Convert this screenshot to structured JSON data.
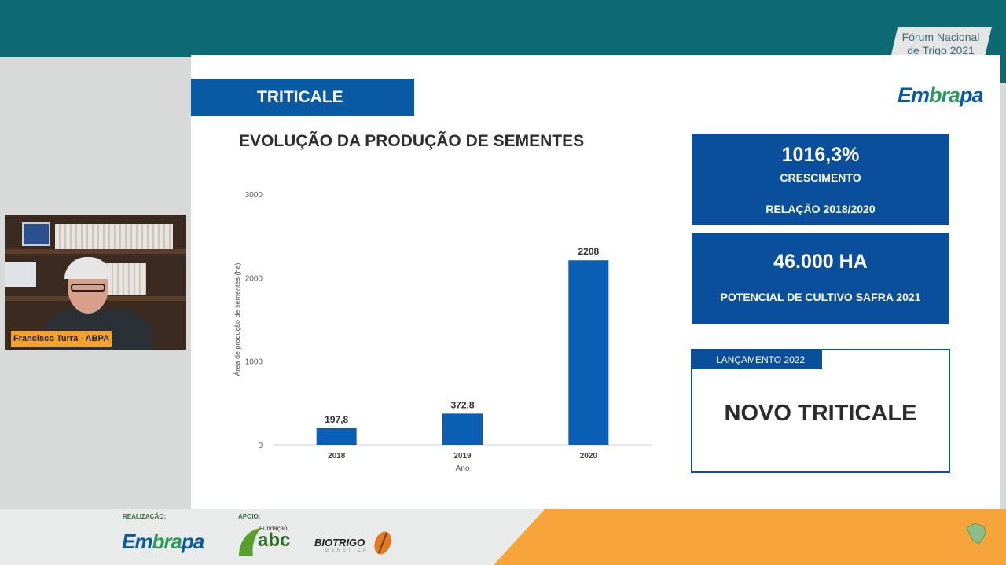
{
  "header": {
    "forum_line1": "Fórum Nacional",
    "forum_line2": "de Trigo 2021"
  },
  "slide": {
    "section_title": "TRITICALE",
    "logo_text_em": "Em",
    "logo_text_brapa": "bra",
    "logo_text_pa": "pa",
    "chart_title": "EVOLUÇÃO DA PRODUÇÃO DE SEMENTES",
    "stat1_value": "1016,3%",
    "stat1_label": "CRESCIMENTO",
    "stat1_sub": "RELAÇÃO 2018/2020",
    "stat2_value": "46.000 HA",
    "stat2_label": "POTENCIAL DE CULTIVO SAFRA 2021",
    "launch_tag": "LANÇAMENTO 2022",
    "launch_title": "NOVO TRITICALE"
  },
  "chart_data": {
    "type": "bar",
    "categories": [
      "2018",
      "2019",
      "2020"
    ],
    "values": [
      197.8,
      372.8,
      2208
    ],
    "value_labels": [
      "197,8",
      "372,8",
      "2208"
    ],
    "xlabel": "Ano",
    "ylabel": "Área de produção de sementes (ha)",
    "ylim": [
      0,
      3000
    ],
    "yticks": [
      0,
      1000,
      2000,
      3000
    ],
    "bar_color": "#0a5fb4",
    "grid": false
  },
  "webcam": {
    "name_tag": "Francisco Turra - ABPA"
  },
  "footer": {
    "realizacao_label": "REALIZAÇÃO:",
    "apoio_label": "APOIO:",
    "fundacao_label": "Fundação",
    "abc_label": "abc",
    "biotrigo_label": "BIOTRIGO",
    "genetica_label": "GENÉTICA"
  },
  "colors": {
    "teal": "#0d6a72",
    "blue": "#0a4f9c",
    "orange": "#f7a43a"
  }
}
